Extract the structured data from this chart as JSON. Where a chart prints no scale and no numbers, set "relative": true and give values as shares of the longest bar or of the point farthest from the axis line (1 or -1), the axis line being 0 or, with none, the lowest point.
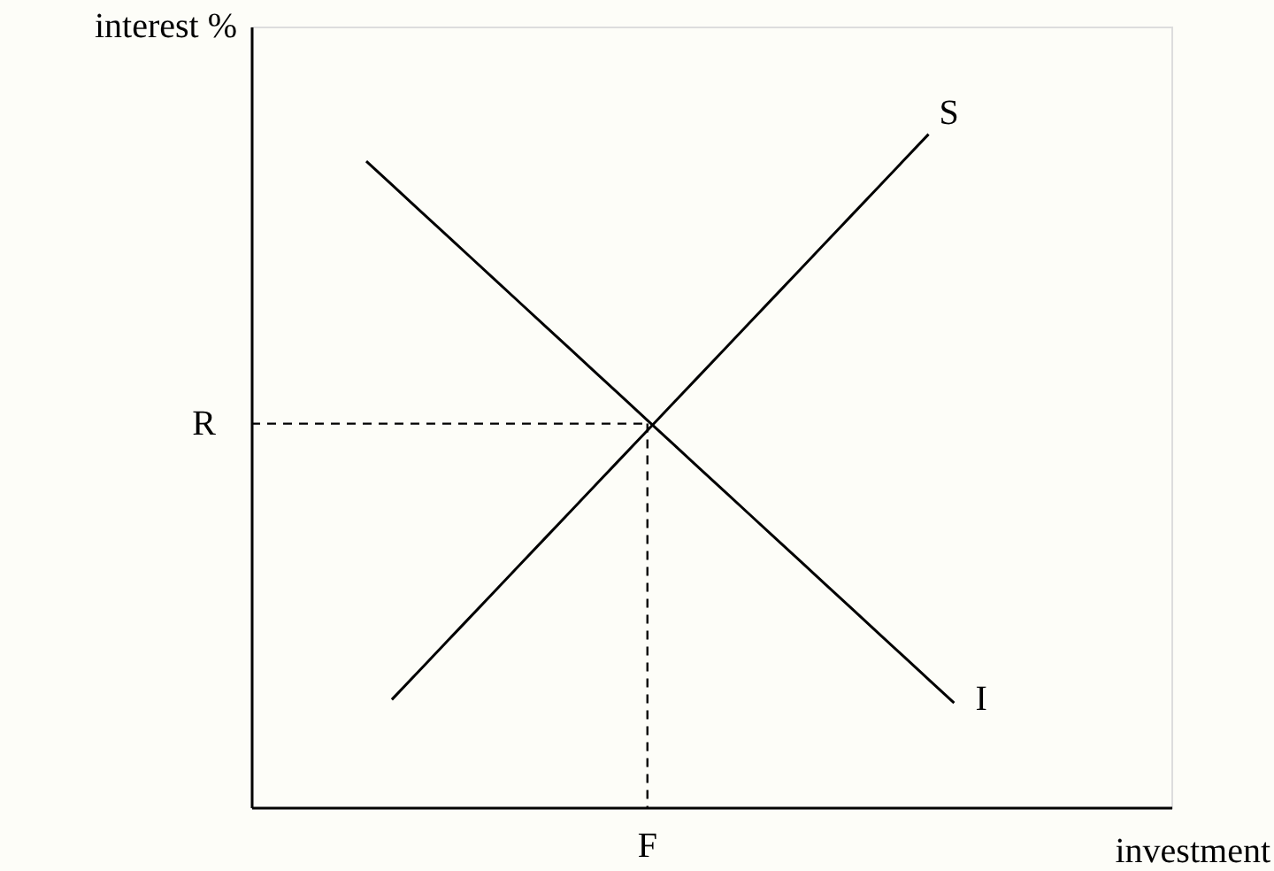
{
  "chart_data": {
    "type": "line",
    "relative": true,
    "xlabel": "investment",
    "ylabel": "interest %",
    "categories": [
      null,
      null,
      null,
      null,
      null,
      null,
      null,
      null,
      null,
      null,
      null,
      null,
      null,
      null,
      null,
      null,
      null,
      null,
      null,
      null,
      null,
      null,
      null,
      null,
      null,
      null,
      null,
      null,
      null,
      null,
      null,
      null,
      null,
      null,
      null,
      null
    ],
    "series": [
      {
        "name": "S",
        "color": "#000000",
        "values": [
          null,
          null,
          null,
          null,
          null,
          0.16,
          0.2,
          0.24,
          0.28,
          0.32,
          0.36,
          0.4,
          0.44,
          0.48,
          0.52,
          0.56,
          0.6,
          0.64,
          0.68,
          0.72,
          0.76,
          0.8,
          0.84,
          0.88,
          0.92,
          0.96,
          1.0,
          null,
          null,
          null,
          null,
          null,
          null,
          null,
          null,
          null
        ]
      },
      {
        "name": "I",
        "color": "#000000",
        "values": [
          null,
          null,
          null,
          null,
          0.96,
          0.925,
          0.89,
          0.855,
          0.82,
          0.785,
          0.75,
          0.715,
          0.68,
          0.645,
          0.61,
          0.575,
          0.54,
          0.505,
          0.47,
          0.435,
          0.4,
          0.365,
          0.33,
          0.295,
          0.26,
          0.225,
          0.19,
          0.155,
          null,
          null,
          null,
          null,
          null,
          null,
          null,
          null
        ]
      }
    ],
    "ref_lines": [
      {
        "axis": "y",
        "value": 0.57,
        "label": "R",
        "line_style": "dashed"
      },
      {
        "axis": "x",
        "label": "F",
        "line_style": "dashed"
      }
    ],
    "grid": false,
    "line_style": "solid",
    "marker": "none"
  }
}
